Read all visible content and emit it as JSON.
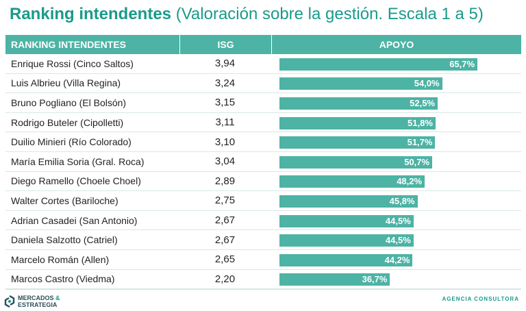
{
  "title": {
    "bold": "Ranking intendentes",
    "rest": " (Valoración sobre la gestión. Escala 1 a 5)"
  },
  "colors": {
    "accent": "#4db3a4",
    "title": "#1a9a8a"
  },
  "chart_data": {
    "type": "table",
    "columns": [
      "RANKING INTENDENTES",
      "ISG",
      "APOYO"
    ],
    "rows": [
      {
        "name": "Enrique Rossi (Cinco Saltos)",
        "isg": "3,94",
        "apoyo": 65.7,
        "apoyo_label": "65,7%"
      },
      {
        "name": "Luis Albrieu (Villa Regina)",
        "isg": "3,24",
        "apoyo": 54.0,
        "apoyo_label": "54,0%"
      },
      {
        "name": "Bruno Pogliano (El Bolsón)",
        "isg": "3,15",
        "apoyo": 52.5,
        "apoyo_label": "52,5%"
      },
      {
        "name": "Rodrigo Buteler (Cipolletti)",
        "isg": "3,11",
        "apoyo": 51.8,
        "apoyo_label": "51,8%"
      },
      {
        "name": "Duilio Minieri (Río Colorado)",
        "isg": "3,10",
        "apoyo": 51.7,
        "apoyo_label": "51,7%"
      },
      {
        "name": "María Emilia Soria (Gral. Roca)",
        "isg": "3,04",
        "apoyo": 50.7,
        "apoyo_label": "50,7%"
      },
      {
        "name": "Diego Ramello (Choele Choel)",
        "isg": "2,89",
        "apoyo": 48.2,
        "apoyo_label": "48,2%"
      },
      {
        "name": "Walter Cortes (Bariloche)",
        "isg": "2,75",
        "apoyo": 45.8,
        "apoyo_label": "45,8%"
      },
      {
        "name": "Adrian Casadei (San Antonio)",
        "isg": "2,67",
        "apoyo": 44.5,
        "apoyo_label": "44,5%"
      },
      {
        "name": "Daniela Salzotto (Catriel)",
        "isg": "2,67",
        "apoyo": 44.5,
        "apoyo_label": "44,5%"
      },
      {
        "name": "Marcelo Román (Allen)",
        "isg": "2,65",
        "apoyo": 44.2,
        "apoyo_label": "44,2%"
      },
      {
        "name": "Marcos Castro (Viedma)",
        "isg": "2,20",
        "apoyo": 36.7,
        "apoyo_label": "36,7%"
      }
    ]
  },
  "footer": {
    "logo_line1": "MERCADOS",
    "logo_amp": "&",
    "logo_line2": "ESTRATEGIA",
    "agency": "AGENCIA CONSULTORA"
  }
}
